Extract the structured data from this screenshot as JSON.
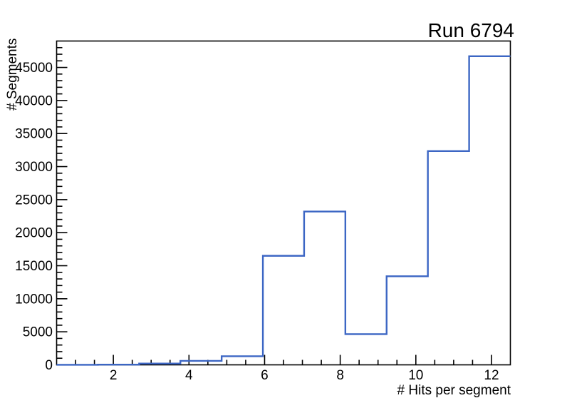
{
  "title": "Run 6794",
  "chart_data": {
    "type": "bar",
    "subtype": "step-histogram",
    "title": "Run 6794",
    "xlabel": "# Hits per segment",
    "ylabel": "# Segments",
    "xlim": [
      0.5,
      12.5
    ],
    "ylim": [
      0,
      49000
    ],
    "bin_edges": [
      0.5,
      1.591,
      2.682,
      3.773,
      4.864,
      5.955,
      7.045,
      8.136,
      9.227,
      10.318,
      11.409,
      12.5
    ],
    "values": [
      10,
      30,
      200,
      600,
      1300,
      16500,
      23200,
      4650,
      13400,
      32350,
      46700
    ],
    "x_major_ticks": [
      2,
      4,
      6,
      8,
      10,
      12
    ],
    "x_minor_step": 0.5,
    "y_major_step": 5000,
    "y_minor_step": 1000,
    "y_tick_labels": [
      "0",
      "5000",
      "10000",
      "15000",
      "20000",
      "25000",
      "30000",
      "35000",
      "40000",
      "45000"
    ],
    "grid": false,
    "legend": "none",
    "line_color": "#3c66c4",
    "axis_color": "#000000",
    "background_color": "#ffffff"
  }
}
